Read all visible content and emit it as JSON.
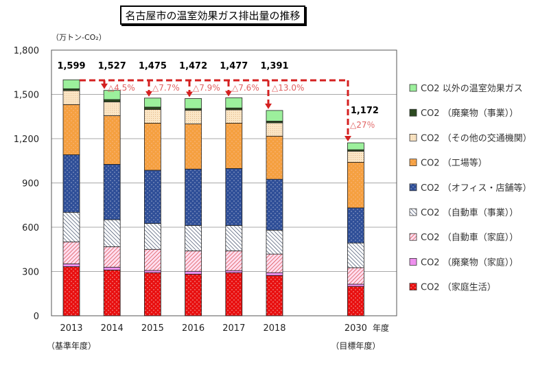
{
  "chart_data": {
    "type": "bar",
    "stacked": true,
    "title": "名古屋市の温室効果ガス排出量の推移",
    "ylabel": "（万トン-CO₂）",
    "xlabel": "年度",
    "ylim": [
      0,
      1800
    ],
    "yticks": [
      0,
      300,
      600,
      900,
      1200,
      1500,
      1800
    ],
    "ytick_labels": [
      "0",
      "300",
      "600",
      "900",
      "1,200",
      "1,500",
      "1,800"
    ],
    "grid": true,
    "legend_position": "right",
    "categories": [
      "2013",
      "2014",
      "2015",
      "2016",
      "2017",
      "2018",
      "2030"
    ],
    "category_notes": {
      "2013": "（基準年度）",
      "2030": "（目標年度）"
    },
    "totals": [
      1599,
      1527,
      1475,
      1472,
      1477,
      1391,
      1172
    ],
    "total_labels": [
      "1,599",
      "1,527",
      "1,475",
      "1,472",
      "1,477",
      "1,391",
      "1,172"
    ],
    "reductions": [
      {
        "category": "2014",
        "label": "△4.5%"
      },
      {
        "category": "2015",
        "label": "△7.7%"
      },
      {
        "category": "2016",
        "label": "△7.9%"
      },
      {
        "category": "2017",
        "label": "△7.6%"
      },
      {
        "category": "2018",
        "label": "△13.0%"
      },
      {
        "category": "2030",
        "label": "△27％"
      }
    ],
    "series": [
      {
        "name": "CO2 （家庭生活）",
        "color": "#e81010",
        "pattern": "dots",
        "values": [
          333,
          310,
          292,
          282,
          292,
          273,
          199
        ]
      },
      {
        "name": "CO2 （廃棄物（家庭））",
        "color": "#ee90ee",
        "pattern": "solid",
        "values": [
          19,
          19,
          15,
          19,
          14,
          19,
          15
        ]
      },
      {
        "name": "CO2 （自動車（家庭））",
        "color": "#d03030",
        "pattern": "hatch-pink",
        "values": [
          149,
          139,
          143,
          139,
          134,
          126,
          112
        ]
      },
      {
        "name": "CO2 （自動車（事業））",
        "color": "#203050",
        "pattern": "hatch-blue",
        "values": [
          200,
          183,
          175,
          172,
          172,
          162,
          167
        ]
      },
      {
        "name": "CO2 （オフィス・店舗等）",
        "color": "#2f4f98",
        "pattern": "dots",
        "values": [
          390,
          375,
          361,
          382,
          386,
          345,
          238
        ]
      },
      {
        "name": "CO2 （工場等）",
        "color": "#f5a040",
        "pattern": "dots",
        "values": [
          340,
          330,
          319,
          306,
          307,
          292,
          309
        ]
      },
      {
        "name": "CO2 （その他の交通機関）",
        "color": "#fbe6c6",
        "pattern": "fine-dots",
        "values": [
          94,
          93,
          93,
          92,
          90,
          90,
          75
        ]
      },
      {
        "name": "CO2 （廃棄物（事業））",
        "color": "#2c4a20",
        "pattern": "solid",
        "values": [
          13,
          16,
          16,
          12,
          13,
          12,
          10
        ]
      },
      {
        "name": "CO2 以外の温室効果ガス",
        "color": "#9cf09c",
        "pattern": "solid",
        "values": [
          61,
          62,
          61,
          68,
          69,
          72,
          47
        ]
      }
    ],
    "reduction_line_color": "#d42020"
  }
}
